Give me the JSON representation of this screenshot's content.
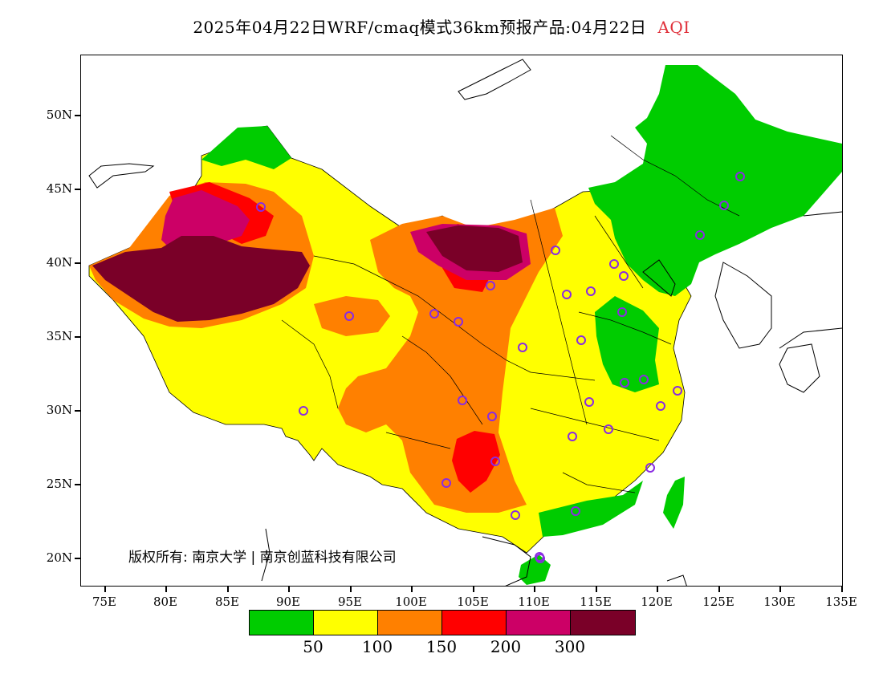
{
  "title": {
    "text": "2025年04月22日WRF/cmaq模式36km预报产品:04月22日",
    "variable": "AQI"
  },
  "axes": {
    "y_labels": [
      "50N",
      "45N",
      "40N",
      "35N",
      "30N",
      "25N",
      "20N"
    ],
    "x_labels": [
      "75E",
      "80E",
      "85E",
      "90E",
      "95E",
      "100E",
      "105E",
      "110E",
      "115E",
      "120E",
      "125E",
      "130E",
      "135E"
    ]
  },
  "copyright": "版权所有: 南京大学 | 南京创蓝科技有限公司",
  "legend": {
    "colors": [
      "#00cc00",
      "#ffff00",
      "#ff8000",
      "#ff0000",
      "#cc0066",
      "#7a0028"
    ],
    "labels": [
      "50",
      "100",
      "150",
      "200",
      "300"
    ]
  },
  "colors": {
    "good": "#00cc00",
    "moderate": "#ffff00",
    "light": "#ff8000",
    "medium": "#ff0000",
    "heavy": "#cc0066",
    "severe": "#7a0028",
    "station": "#8a2be2",
    "title_accent": "#e0303a"
  }
}
